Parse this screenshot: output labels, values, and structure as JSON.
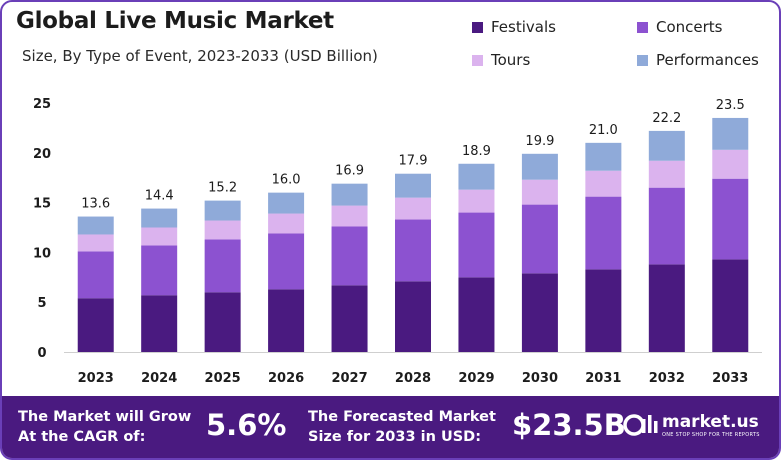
{
  "header": {
    "title": "Global Live Music Market",
    "subtitle": "Size, By Type of Event, 2023-2033 (USD Billion)"
  },
  "colors": {
    "festivals": "#4a1a80",
    "concerts": "#8c52d0",
    "tours": "#dbb3ee",
    "performances": "#8faad9",
    "footer_bg": "#4a1a80"
  },
  "chart_data": {
    "type": "bar",
    "stacked": true,
    "categories": [
      "2023",
      "2024",
      "2025",
      "2026",
      "2027",
      "2028",
      "2029",
      "2030",
      "2031",
      "2032",
      "2033"
    ],
    "series": [
      {
        "name": "Festivals",
        "values": [
          5.4,
          5.7,
          6.0,
          6.3,
          6.7,
          7.1,
          7.5,
          7.9,
          8.3,
          8.8,
          9.3
        ]
      },
      {
        "name": "Concerts",
        "values": [
          4.7,
          5.0,
          5.3,
          5.6,
          5.9,
          6.2,
          6.5,
          6.9,
          7.3,
          7.7,
          8.1
        ]
      },
      {
        "name": "Tours",
        "values": [
          1.7,
          1.8,
          1.9,
          2.0,
          2.1,
          2.2,
          2.3,
          2.5,
          2.6,
          2.7,
          2.9
        ]
      },
      {
        "name": "Performances",
        "values": [
          1.8,
          1.9,
          2.0,
          2.1,
          2.2,
          2.4,
          2.6,
          2.6,
          2.8,
          3.0,
          3.2
        ]
      }
    ],
    "totals": [
      "13.6",
      "14.4",
      "15.2",
      "16.0",
      "16.9",
      "17.9",
      "18.9",
      "19.9",
      "21.0",
      "22.2",
      "23.5"
    ],
    "yticks": [
      "0",
      "5",
      "10",
      "15",
      "20",
      "25"
    ],
    "ylim": [
      0,
      25
    ],
    "grid": false,
    "legend_position": "top-right"
  },
  "footer": {
    "cagr_label_line1": "The Market will Grow",
    "cagr_label_line2": "At the CAGR of:",
    "cagr_value": "5.6%",
    "forecast_label_line1": "The Forecasted Market",
    "forecast_label_line2": "Size for 2033 in USD:",
    "forecast_value": "$23.5B",
    "brand_name": "market.us",
    "brand_tagline": "ONE STOP SHOP FOR THE REPORTS"
  }
}
